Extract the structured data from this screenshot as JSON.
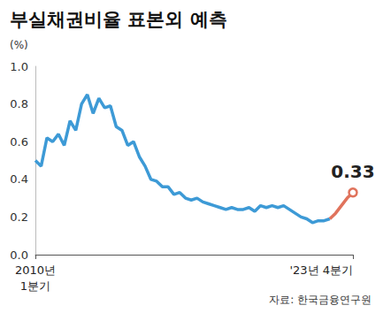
{
  "chart_data": {
    "type": "line",
    "title": "부실채권비율 표본외 예측",
    "y_label": "(%)",
    "source": "자료: 한국금융연구원",
    "categories": [
      "2010년\n1분기",
      null,
      null,
      null,
      null,
      null,
      null,
      null,
      null,
      null,
      null,
      null,
      null,
      null,
      null,
      null,
      null,
      null,
      null,
      null,
      null,
      null,
      null,
      null,
      null,
      null,
      null,
      null,
      null,
      null,
      null,
      null,
      null,
      null,
      null,
      null,
      null,
      null,
      null,
      null,
      null,
      null,
      null,
      null,
      null,
      null,
      null,
      null,
      null,
      null,
      null,
      null,
      null,
      null,
      null,
      "'23년 4분기"
    ],
    "series": [
      {
        "color": "#3d9ad6",
        "values": [
          0.5,
          0.47,
          0.62,
          0.6,
          0.64,
          0.58,
          0.71,
          0.66,
          0.8,
          0.85,
          0.75,
          0.83,
          0.78,
          0.79,
          0.68,
          0.66,
          0.58,
          0.6,
          0.52,
          0.47,
          0.4,
          0.39,
          0.36,
          0.36,
          0.32,
          0.33,
          0.3,
          0.29,
          0.3,
          0.28,
          0.27,
          0.26,
          0.25,
          0.24,
          0.25,
          0.24,
          0.24,
          0.25,
          0.23,
          0.26,
          0.25,
          0.26,
          0.25,
          0.26,
          0.24,
          0.22,
          0.2,
          0.19,
          0.17,
          0.18,
          0.18,
          0.19,
          null,
          null,
          null,
          null
        ]
      },
      {
        "color": "#e0735c",
        "values": [
          null,
          null,
          null,
          null,
          null,
          null,
          null,
          null,
          null,
          null,
          null,
          null,
          null,
          null,
          null,
          null,
          null,
          null,
          null,
          null,
          null,
          null,
          null,
          null,
          null,
          null,
          null,
          null,
          null,
          null,
          null,
          null,
          null,
          null,
          null,
          null,
          null,
          null,
          null,
          null,
          null,
          null,
          null,
          null,
          null,
          null,
          null,
          null,
          null,
          null,
          null,
          0.19,
          0.22,
          0.26,
          0.3,
          0.33
        ]
      }
    ],
    "annotations": [
      {
        "text": "0.33",
        "index": 55,
        "y": 0.33
      }
    ],
    "ylim": [
      0,
      1
    ],
    "yticks": [
      {
        "value": 0,
        "label": "0.0"
      },
      0.2,
      0.4,
      0.6,
      0.8,
      {
        "value": 1,
        "label": "1.0"
      }
    ],
    "grid": false
  }
}
